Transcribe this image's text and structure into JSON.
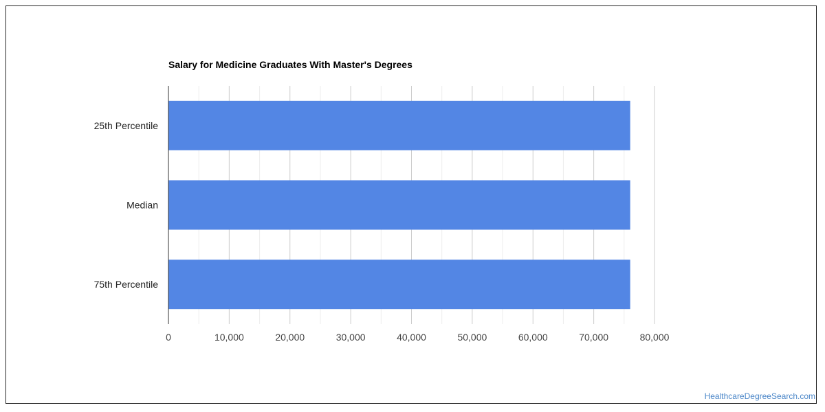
{
  "chart_data": {
    "type": "bar",
    "orientation": "horizontal",
    "title": "Salary for Medicine Graduates With Master's Degrees",
    "categories": [
      "25th Percentile",
      "Median",
      "75th Percentile"
    ],
    "values": [
      76000,
      76000,
      76000
    ],
    "xlabel": "",
    "ylabel": "",
    "xlim": [
      0,
      80000
    ],
    "x_ticks": [
      0,
      10000,
      20000,
      30000,
      40000,
      50000,
      60000,
      70000,
      80000
    ],
    "x_tick_labels": [
      "0",
      "10,000",
      "20,000",
      "30,000",
      "40,000",
      "50,000",
      "60,000",
      "70,000",
      "80,000"
    ],
    "grid": true,
    "legend": "none",
    "bar_color": "#5386e4"
  },
  "watermark": "HealthcareDegreeSearch.com"
}
